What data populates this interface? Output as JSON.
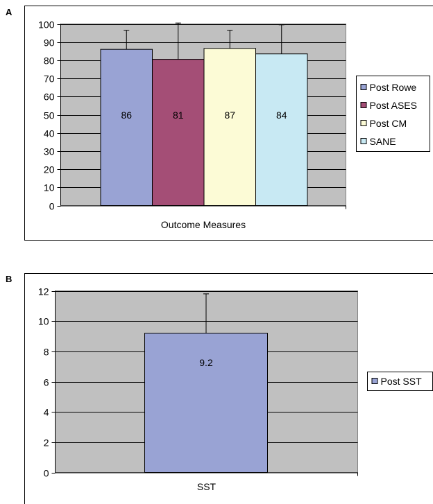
{
  "panels": [
    {
      "letter": "A"
    },
    {
      "letter": "B"
    }
  ],
  "chart_data": [
    {
      "type": "bar",
      "categories": [
        "Outcome Measures"
      ],
      "xlabel": "Outcome Measures",
      "ylim": [
        0,
        100
      ],
      "yticks": [
        0,
        10,
        20,
        30,
        40,
        50,
        60,
        70,
        80,
        90,
        100
      ],
      "grid": true,
      "legend_position": "right",
      "series": [
        {
          "name": "Post Rowe",
          "values": [
            86
          ],
          "error": [
            10.5
          ],
          "label": "86",
          "color": "#99a3d4"
        },
        {
          "name": "Post ASES",
          "values": [
            80.5
          ],
          "error": [
            20
          ],
          "label": "81",
          "color": "#a44e76"
        },
        {
          "name": "Post CM",
          "values": [
            86.5
          ],
          "error": [
            10
          ],
          "label": "87",
          "color": "#fcfbd6"
        },
        {
          "name": "SANE",
          "values": [
            83.5
          ],
          "error": [
            16
          ],
          "label": "84",
          "color": "#c8e9f3"
        }
      ]
    },
    {
      "type": "bar",
      "categories": [
        "SST"
      ],
      "xlabel": "SST",
      "ylim": [
        0,
        12
      ],
      "yticks": [
        0,
        2,
        4,
        6,
        8,
        10,
        12
      ],
      "grid": true,
      "legend_position": "right",
      "series": [
        {
          "name": "Post SST",
          "values": [
            9.2
          ],
          "error": [
            2.6
          ],
          "label": "9.2",
          "color": "#99a3d4"
        }
      ]
    }
  ]
}
